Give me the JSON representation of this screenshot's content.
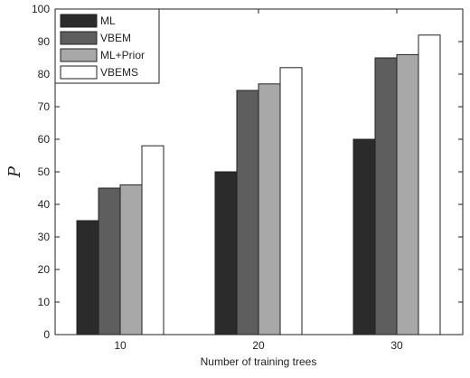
{
  "chart_data": {
    "type": "bar",
    "categories": [
      "10",
      "20",
      "30"
    ],
    "series": [
      {
        "name": "ML",
        "values": [
          35,
          50,
          60
        ],
        "color": "#2b2b2b"
      },
      {
        "name": "VBEM",
        "values": [
          45,
          75,
          85
        ],
        "color": "#5e5e5e"
      },
      {
        "name": "ML+Prior",
        "values": [
          46,
          77,
          86
        ],
        "color": "#a8a8a8"
      },
      {
        "name": "VBEMS",
        "values": [
          58,
          82,
          92
        ],
        "color": "#ffffff"
      }
    ],
    "title": "",
    "xlabel": "Number of training trees",
    "ylabel": "P",
    "ylim": [
      0,
      100
    ],
    "yticks": [
      0,
      10,
      20,
      30,
      40,
      50,
      60,
      70,
      80,
      90,
      100
    ],
    "legend_position": "top-left",
    "grid": false
  }
}
